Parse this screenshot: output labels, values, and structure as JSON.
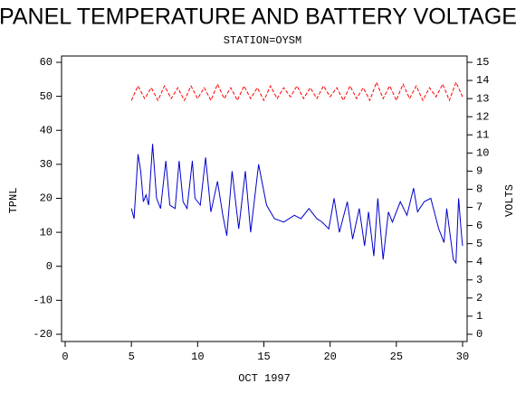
{
  "chart_data": {
    "type": "line",
    "title": "PANEL TEMPERATURE AND BATTERY VOLTAGE",
    "subtitle": "STATION=OYSM",
    "x_label": "OCT 1997",
    "y_label": "TPNL",
    "y2_label": "VOLTS",
    "xlim": [
      0,
      30
    ],
    "xticks": [
      0,
      5,
      10,
      15,
      20,
      25,
      30
    ],
    "ylim": [
      -20,
      60
    ],
    "yticks": [
      -20,
      -10,
      0,
      10,
      20,
      30,
      40,
      50,
      60
    ],
    "y2lim": [
      0,
      15
    ],
    "y2ticks": [
      0,
      1,
      2,
      3,
      4,
      5,
      6,
      7,
      8,
      9,
      10,
      11,
      12,
      13,
      14,
      15
    ],
    "series": [
      {
        "name": "TPNL",
        "color": "#0000cc",
        "dashed": false,
        "x": [
          5,
          5.2,
          5.5,
          5.7,
          5.9,
          6.1,
          6.3,
          6.6,
          6.9,
          7.2,
          7.6,
          7.9,
          8.3,
          8.6,
          8.9,
          9.2,
          9.6,
          9.8,
          10.2,
          10.6,
          11,
          11.5,
          11.9,
          12.2,
          12.6,
          13.1,
          13.6,
          14,
          14.6,
          15.2,
          15.8,
          16.5,
          17.3,
          17.8,
          18.4,
          19,
          19.4,
          19.9,
          20.3,
          20.7,
          21.3,
          21.7,
          22.2,
          22.6,
          22.9,
          23.3,
          23.6,
          24,
          24.4,
          24.7,
          25.3,
          25.8,
          26.3,
          26.6,
          27.1,
          27.6,
          28.2,
          28.6,
          28.8,
          29.3,
          29.5,
          29.7,
          29.9,
          30
        ],
        "values": [
          17,
          14,
          33,
          28,
          19,
          21,
          18,
          36,
          20,
          17,
          31,
          18,
          17,
          31,
          19,
          17,
          31,
          20,
          18,
          32,
          16,
          25,
          15,
          9,
          28,
          11,
          28,
          10,
          30,
          18,
          14,
          13,
          15,
          14,
          17,
          14,
          13,
          11,
          20,
          10,
          19,
          8,
          17,
          6,
          16,
          3,
          20,
          2,
          16,
          13,
          19,
          15,
          23,
          16,
          19,
          20,
          11,
          7,
          17,
          2,
          1,
          20,
          10,
          6
        ]
      },
      {
        "name": "VOLTS",
        "color": "#ff0000",
        "dashed": true,
        "axis": "y2",
        "x": [
          5,
          5.5,
          6,
          6.5,
          7,
          7.5,
          8,
          8.5,
          9,
          9.5,
          10,
          10.5,
          11,
          11.5,
          12,
          12.5,
          13,
          13.5,
          14,
          14.5,
          15,
          15.5,
          16,
          16.5,
          17,
          17.5,
          18,
          18.5,
          19,
          19.5,
          20,
          20.5,
          21,
          21.5,
          22,
          22.5,
          23,
          23.5,
          24,
          24.5,
          25,
          25.5,
          26,
          26.5,
          27,
          27.5,
          28,
          28.5,
          29,
          29.5,
          30
        ],
        "values": [
          12.9,
          13.7,
          13.0,
          13.6,
          12.9,
          13.7,
          13.0,
          13.6,
          12.9,
          13.7,
          13.0,
          13.6,
          12.9,
          13.8,
          13.0,
          13.6,
          12.9,
          13.7,
          13.0,
          13.6,
          12.9,
          13.7,
          13.0,
          13.6,
          13.1,
          13.7,
          13.0,
          13.6,
          13.0,
          13.7,
          13.1,
          13.6,
          12.9,
          13.7,
          13.0,
          13.6,
          12.9,
          13.9,
          13.0,
          13.7,
          12.9,
          13.8,
          13.0,
          13.7,
          12.9,
          13.6,
          13.1,
          13.8,
          12.9,
          13.9,
          13.1
        ]
      }
    ]
  }
}
